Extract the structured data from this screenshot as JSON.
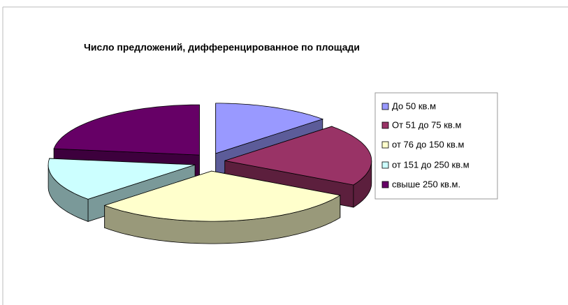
{
  "chart_data": {
    "type": "pie3d",
    "title": "Число предложений, дифференцированное по площади",
    "categories": [
      "До 50 кв.м",
      "От 51 до 75 кв.м",
      "от 76 до 150 кв.м",
      "от 151 до 250 кв.м",
      "свыше 250 кв.м."
    ],
    "values": [
      13,
      20,
      30,
      14,
      23
    ],
    "colors": [
      "#9999ff",
      "#993366",
      "#ffffcc",
      "#ccffff",
      "#660066"
    ],
    "legend": "right"
  }
}
